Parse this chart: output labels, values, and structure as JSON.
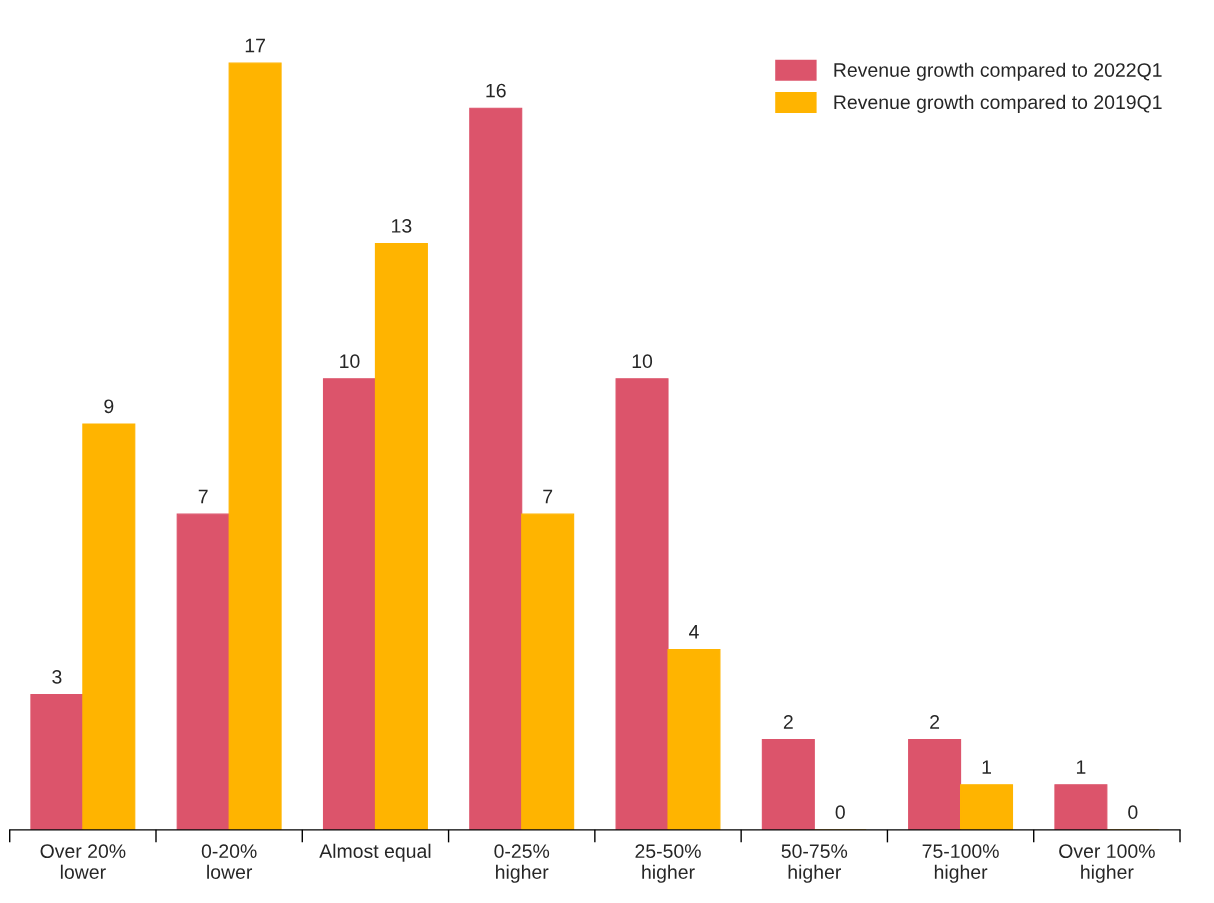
{
  "chart_data": {
    "type": "bar",
    "categories": [
      "Over 20%\nlower",
      "0-20%\nlower",
      "Almost equal",
      "0-25%\nhigher",
      "25-50%\nhigher",
      "50-75%\nhigher",
      "75-100%\nhigher",
      "Over 100%\nhigher"
    ],
    "series": [
      {
        "name": "Revenue growth compared to 2022Q1",
        "color": "#dc546b",
        "values": [
          3,
          7,
          10,
          16,
          10,
          2,
          2,
          1
        ]
      },
      {
        "name": "Revenue growth compared to 2019Q1",
        "color": "#ffb400",
        "values": [
          9,
          17,
          13,
          7,
          4,
          0,
          1,
          0
        ]
      }
    ],
    "data_labels": true,
    "legend": "top right",
    "grid": false,
    "tick_labels": "x"
  }
}
